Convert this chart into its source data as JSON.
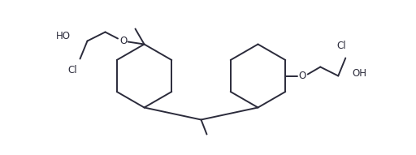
{
  "background": "#ffffff",
  "line_color": "#2b2b3b",
  "line_width": 1.4,
  "font_size": 8.5,
  "figsize": [
    5.12,
    1.91
  ],
  "dpi": 100,
  "xlim": [
    0,
    10.24
  ],
  "ylim": [
    0,
    3.82
  ]
}
